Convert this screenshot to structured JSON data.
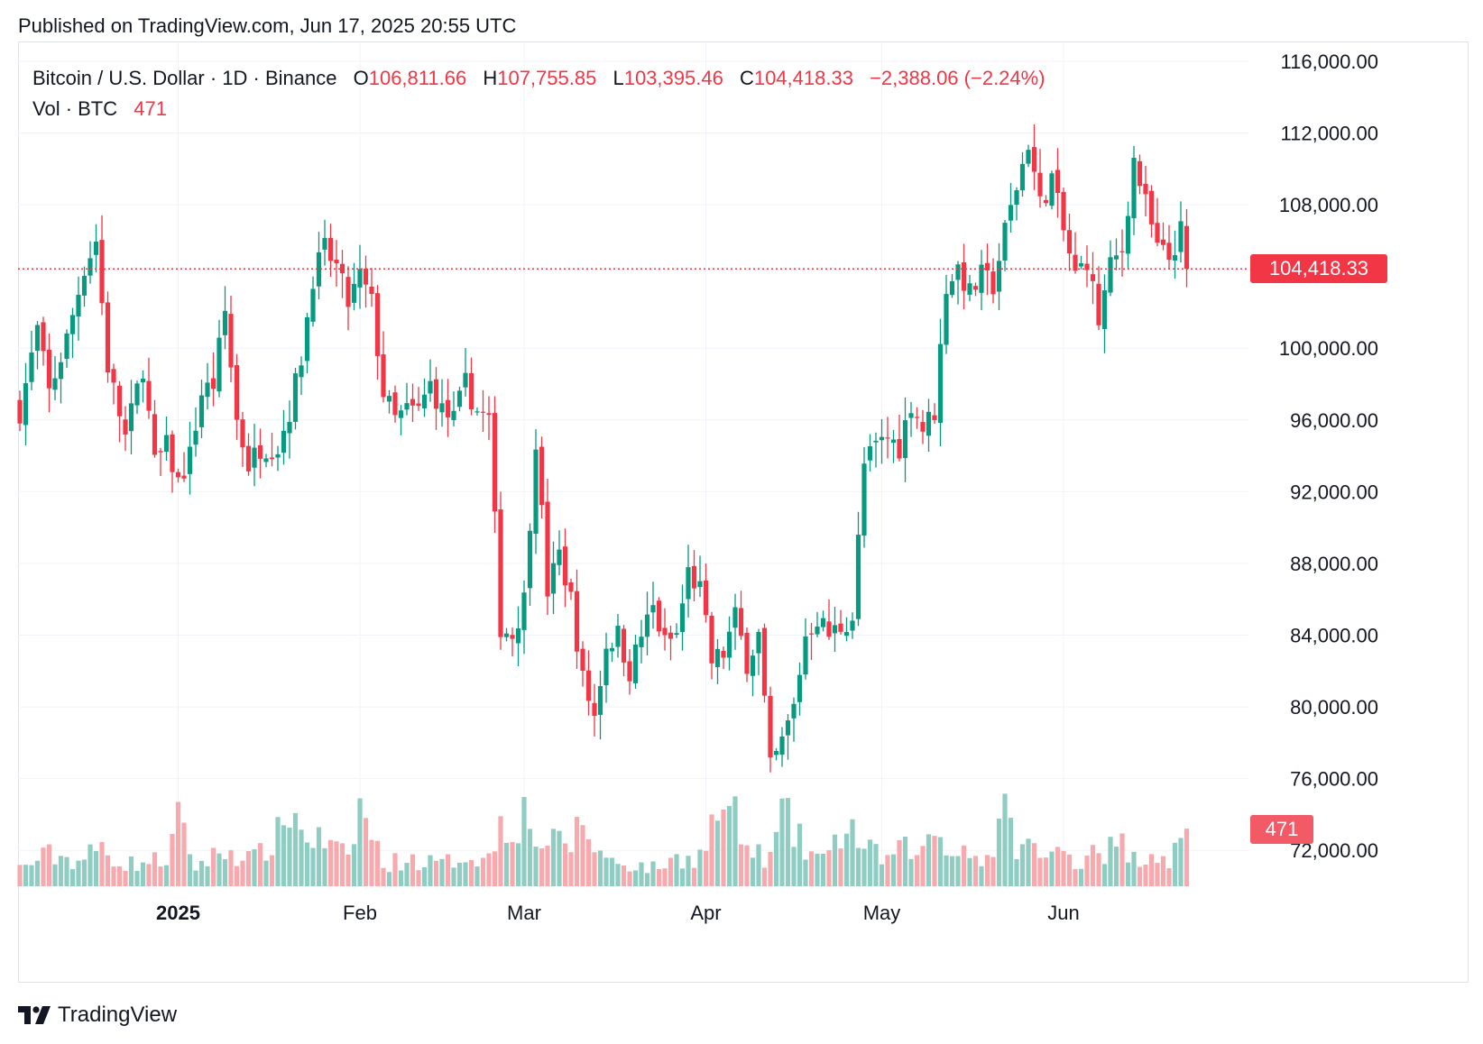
{
  "published": "Published on TradingView.com, Jun 17, 2025 20:55 UTC",
  "legend": {
    "symbol": "Bitcoin / U.S. Dollar · 1D · Binance",
    "open_label": "O",
    "open": "106,811.66",
    "high_label": "H",
    "high": "107,755.85",
    "low_label": "L",
    "low": "103,395.46",
    "close_label": "C",
    "close": "104,418.33",
    "change": "−2,388.06 (−2.24%)",
    "vol_label": "Vol · BTC",
    "vol": "471"
  },
  "last_price_label": "104,418.33",
  "last_volume_label": "471",
  "brand": "TradingView",
  "colors": {
    "up": "#089981",
    "down": "#f23645",
    "up_vol": "#8fcdc3",
    "down_vol": "#f7a9ae",
    "grid": "#f0f3fa"
  },
  "chart_data": {
    "type": "candlestick",
    "title": "Bitcoin / U.S. Dollar · 1D · Binance",
    "ylim": [
      70000,
      117000
    ],
    "y_ticks": [
      {
        "value": 116000,
        "label": "116,000.00"
      },
      {
        "value": 112000,
        "label": "112,000.00"
      },
      {
        "value": 108000,
        "label": "108,000.00"
      },
      {
        "value": 100000,
        "label": "100,000.00"
      },
      {
        "value": 96000,
        "label": "96,000.00"
      },
      {
        "value": 92000,
        "label": "92,000.00"
      },
      {
        "value": 88000,
        "label": "88,000.00"
      },
      {
        "value": 84000,
        "label": "84,000.00"
      },
      {
        "value": 80000,
        "label": "80,000.00"
      },
      {
        "value": 76000,
        "label": "76,000.00"
      },
      {
        "value": 72000,
        "label": "72,000.00"
      }
    ],
    "x_ticks": [
      {
        "index": 27,
        "label": "2025"
      },
      {
        "index": 58,
        "label": "Feb"
      },
      {
        "index": 86,
        "label": "Mar"
      },
      {
        "index": 117,
        "label": "Apr"
      },
      {
        "index": 147,
        "label": "May"
      },
      {
        "index": 178,
        "label": "Jun"
      }
    ],
    "last_price": 104418.33,
    "close_anchors": [
      [
        0,
        96500
      ],
      [
        3,
        101000
      ],
      [
        5,
        97500
      ],
      [
        8,
        100500
      ],
      [
        11,
        104500
      ],
      [
        13,
        106000
      ],
      [
        15,
        99000
      ],
      [
        18,
        95000
      ],
      [
        21,
        99000
      ],
      [
        23,
        93500
      ],
      [
        25,
        94500
      ],
      [
        27,
        92500
      ],
      [
        29,
        94000
      ],
      [
        31,
        97500
      ],
      [
        33,
        98000
      ],
      [
        35,
        102000
      ],
      [
        37,
        96000
      ],
      [
        39,
        93500
      ],
      [
        41,
        94500
      ],
      [
        44,
        94500
      ],
      [
        46,
        96500
      ],
      [
        48,
        99500
      ],
      [
        50,
        104000
      ],
      [
        52,
        105500
      ],
      [
        54,
        104500
      ],
      [
        56,
        102500
      ],
      [
        58,
        104000
      ],
      [
        60,
        102500
      ],
      [
        62,
        97500
      ],
      [
        64,
        96000
      ],
      [
        66,
        96500
      ],
      [
        68,
        96500
      ],
      [
        70,
        98000
      ],
      [
        72,
        96500
      ],
      [
        74,
        96000
      ],
      [
        76,
        98000
      ],
      [
        78,
        96500
      ],
      [
        80,
        96000
      ],
      [
        82,
        84500
      ],
      [
        84,
        84000
      ],
      [
        86,
        86000
      ],
      [
        88,
        95000
      ],
      [
        90,
        86500
      ],
      [
        92,
        88500
      ],
      [
        94,
        86000
      ],
      [
        96,
        81500
      ],
      [
        98,
        79500
      ],
      [
        100,
        83500
      ],
      [
        102,
        84000
      ],
      [
        104,
        82000
      ],
      [
        106,
        84000
      ],
      [
        108,
        85500
      ],
      [
        110,
        83500
      ],
      [
        112,
        84000
      ],
      [
        114,
        87500
      ],
      [
        116,
        86500
      ],
      [
        118,
        82500
      ],
      [
        120,
        83000
      ],
      [
        122,
        85000
      ],
      [
        124,
        82500
      ],
      [
        126,
        84000
      ],
      [
        128,
        76500
      ],
      [
        130,
        78000
      ],
      [
        132,
        80000
      ],
      [
        134,
        84000
      ],
      [
        136,
        85000
      ],
      [
        138,
        84000
      ],
      [
        140,
        84500
      ],
      [
        142,
        85000
      ],
      [
        144,
        93500
      ],
      [
        146,
        94500
      ],
      [
        148,
        95000
      ],
      [
        150,
        94500
      ],
      [
        152,
        97000
      ],
      [
        154,
        95500
      ],
      [
        156,
        96500
      ],
      [
        158,
        103500
      ],
      [
        160,
        104500
      ],
      [
        162,
        103000
      ],
      [
        164,
        104000
      ],
      [
        166,
        103500
      ],
      [
        168,
        106500
      ],
      [
        170,
        109000
      ],
      [
        172,
        111500
      ],
      [
        174,
        108000
      ],
      [
        176,
        109500
      ],
      [
        178,
        106500
      ],
      [
        180,
        104000
      ],
      [
        182,
        105000
      ],
      [
        184,
        101500
      ],
      [
        186,
        104500
      ],
      [
        188,
        105500
      ],
      [
        190,
        110500
      ],
      [
        192,
        108000
      ],
      [
        194,
        105500
      ],
      [
        196,
        105000
      ],
      [
        198,
        106500
      ],
      [
        199,
        104418
      ]
    ],
    "volume_anchors": [
      [
        0,
        20
      ],
      [
        5,
        35
      ],
      [
        10,
        28
      ],
      [
        14,
        42
      ],
      [
        18,
        24
      ],
      [
        25,
        30
      ],
      [
        27,
        70
      ],
      [
        30,
        22
      ],
      [
        35,
        40
      ],
      [
        40,
        30
      ],
      [
        44,
        55
      ],
      [
        46,
        90
      ],
      [
        48,
        60
      ],
      [
        52,
        48
      ],
      [
        56,
        30
      ],
      [
        58,
        88
      ],
      [
        62,
        24
      ],
      [
        66,
        30
      ],
      [
        72,
        24
      ],
      [
        76,
        35
      ],
      [
        80,
        30
      ],
      [
        82,
        75
      ],
      [
        84,
        70
      ],
      [
        86,
        80
      ],
      [
        88,
        55
      ],
      [
        90,
        45
      ],
      [
        94,
        50
      ],
      [
        96,
        70
      ],
      [
        98,
        45
      ],
      [
        100,
        30
      ],
      [
        104,
        24
      ],
      [
        108,
        20
      ],
      [
        112,
        30
      ],
      [
        116,
        34
      ],
      [
        118,
        65
      ],
      [
        120,
        90
      ],
      [
        122,
        72
      ],
      [
        124,
        40
      ],
      [
        128,
        30
      ],
      [
        130,
        80
      ],
      [
        134,
        40
      ],
      [
        138,
        30
      ],
      [
        141,
        75
      ],
      [
        144,
        40
      ],
      [
        148,
        30
      ],
      [
        152,
        45
      ],
      [
        154,
        36
      ],
      [
        156,
        68
      ],
      [
        158,
        36
      ],
      [
        160,
        50
      ],
      [
        162,
        35
      ],
      [
        165,
        30
      ],
      [
        168,
        75
      ],
      [
        170,
        50
      ],
      [
        173,
        40
      ],
      [
        175,
        30
      ],
      [
        178,
        40
      ],
      [
        181,
        25
      ],
      [
        183,
        48
      ],
      [
        185,
        40
      ],
      [
        188,
        45
      ],
      [
        190,
        30
      ],
      [
        193,
        40
      ],
      [
        196,
        30
      ],
      [
        199,
        55
      ]
    ]
  }
}
